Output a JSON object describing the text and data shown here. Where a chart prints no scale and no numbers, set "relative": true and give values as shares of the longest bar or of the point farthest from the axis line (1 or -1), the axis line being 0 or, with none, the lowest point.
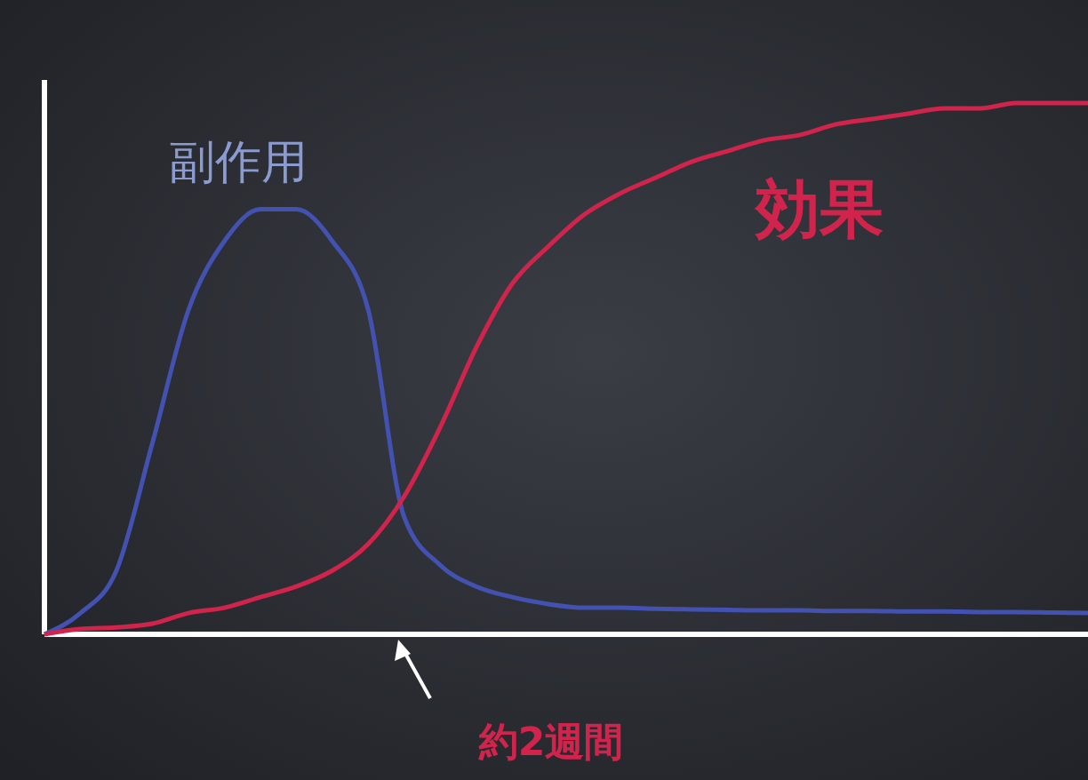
{
  "chart_data": {
    "type": "line",
    "relative": true,
    "categories": [
      null,
      null,
      null,
      null,
      null,
      null,
      null,
      null,
      null,
      null,
      null,
      null,
      null,
      null,
      null,
      null,
      null,
      null,
      null,
      null,
      null,
      null,
      null,
      null,
      null,
      null,
      null,
      null,
      null,
      null
    ],
    "series": [
      {
        "name": "副作用",
        "color": "#4352b0",
        "values": [
          0,
          0.04,
          0.12,
          0.36,
          0.61,
          0.74,
          0.8,
          0.8,
          0.74,
          0.61,
          0.22,
          0.13,
          0.09,
          0.07,
          0.057,
          0.05,
          0.05,
          0.048,
          0.047,
          0.046,
          0.045,
          0.045,
          0.044,
          0.044,
          0.043,
          0.043,
          0.042,
          0.042,
          0.041,
          0.04
        ]
      },
      {
        "name": "効果",
        "color": "#d0244c",
        "values": [
          0,
          0.01,
          0.013,
          0.02,
          0.04,
          0.05,
          0.07,
          0.09,
          0.12,
          0.17,
          0.26,
          0.39,
          0.54,
          0.66,
          0.73,
          0.79,
          0.83,
          0.86,
          0.89,
          0.91,
          0.93,
          0.94,
          0.96,
          0.97,
          0.98,
          0.99,
          0.99,
          1,
          1,
          1
        ]
      }
    ],
    "annotations": [
      "約2週間"
    ]
  }
}
